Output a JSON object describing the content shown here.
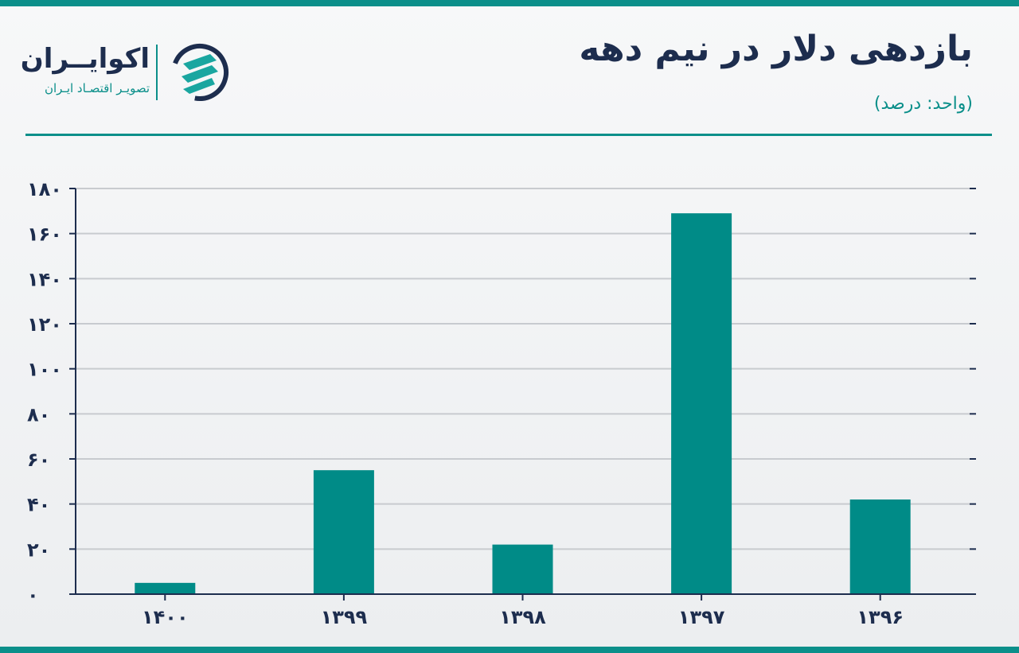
{
  "header": {
    "title": "بازدهی دلار در نیم دهه",
    "unit": "(واحد: درصد)"
  },
  "brand": {
    "name": "اکوایــران",
    "tagline": "تصویـر اقتصـاد ایـران",
    "logo_icon": "ecoiran-logo-icon"
  },
  "colors": {
    "accent": "#0b8f8a",
    "title": "#1d2d4e",
    "bar": "#008b87",
    "grid": "#c8cbcf"
  },
  "chart_data": {
    "type": "bar",
    "title": "بازدهی دلار در نیم دهه",
    "ylabel": "(واحد: درصد)",
    "xlabel": "",
    "categories": [
      "۱۴۰۰",
      "۱۳۹۹",
      "۱۳۹۸",
      "۱۳۹۷",
      "۱۳۹۶"
    ],
    "values": [
      5,
      55,
      22,
      169,
      42
    ],
    "ylim": [
      0,
      180
    ],
    "yticks": [
      0,
      20,
      40,
      60,
      80,
      100,
      120,
      140,
      160,
      180
    ],
    "ytick_labels": [
      "۰",
      "۲۰",
      "۴۰",
      "۶۰",
      "۸۰",
      "۱۰۰",
      "۱۲۰",
      "۱۴۰",
      "۱۶۰",
      "۱۸۰"
    ],
    "grid": true,
    "legend": "none"
  }
}
